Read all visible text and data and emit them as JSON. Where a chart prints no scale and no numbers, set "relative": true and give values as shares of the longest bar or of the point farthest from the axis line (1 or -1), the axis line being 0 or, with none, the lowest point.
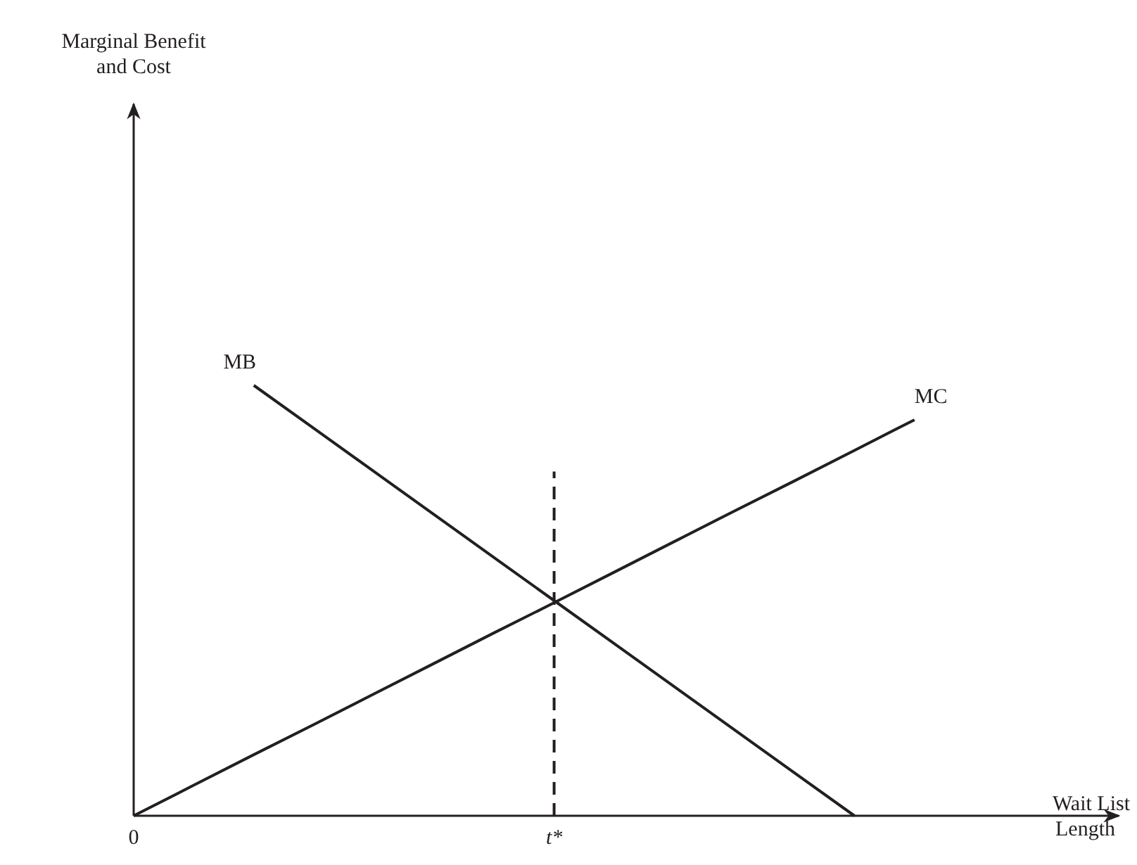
{
  "chart_data": {
    "type": "line",
    "relative": true,
    "xlabel": "Wait List Length",
    "annotations": [
      "Marginal Benefit and Cost"
    ],
    "categories": [
      "0",
      null,
      null,
      null,
      null,
      null,
      null,
      "t*",
      null,
      null,
      null,
      null,
      null,
      null,
      null,
      null,
      null
    ],
    "grid": false,
    "marker": "none",
    "ref_lines": [
      {
        "axis": "x",
        "value": "t*",
        "color": "#231f20",
        "line_style": "dashed"
      }
    ],
    "series": [
      {
        "name": "MB",
        "color": "#231f20",
        "values": [
          null,
          null,
          1,
          0.9,
          0.8,
          0.7,
          0.6,
          0.5,
          0.4,
          0.3,
          0.2,
          0.1,
          0,
          null,
          null,
          null,
          null
        ]
      },
      {
        "name": "MC",
        "color": "#231f20",
        "values": [
          0,
          0.071,
          0.142,
          0.212,
          0.283,
          0.354,
          0.425,
          0.495,
          0.566,
          0.637,
          0.708,
          0.778,
          0.849,
          0.92,
          null,
          null,
          null
        ]
      }
    ]
  }
}
